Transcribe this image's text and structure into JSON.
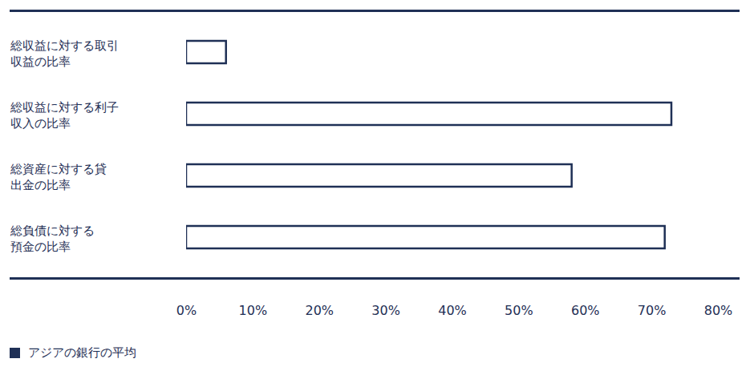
{
  "chart_data": {
    "type": "bar",
    "orientation": "horizontal",
    "categories": [
      "総収益に対する取引\n収益の比率",
      "総収益に対する利子\n収入の比率",
      "総資産に対する貸\n出金の比率",
      "総負債に対する\n預金の比率"
    ],
    "series": [
      {
        "name": "アジアの銀行の平均",
        "color": "#1f3056",
        "values": [
          6,
          73,
          58,
          72
        ]
      }
    ],
    "xlim": [
      0,
      80
    ],
    "xticks": [
      {
        "value": 0,
        "label": "0%"
      },
      {
        "value": 10,
        "label": "10%"
      },
      {
        "value": 20,
        "label": "20%"
      },
      {
        "value": 30,
        "label": "30%"
      },
      {
        "value": 40,
        "label": "40%"
      },
      {
        "value": 50,
        "label": "50%"
      },
      {
        "value": 60,
        "label": "60%"
      },
      {
        "value": 70,
        "label": "70%"
      },
      {
        "value": 80,
        "label": "80%"
      }
    ],
    "grid": false,
    "legend": "bottom-left",
    "data_labels": false
  }
}
